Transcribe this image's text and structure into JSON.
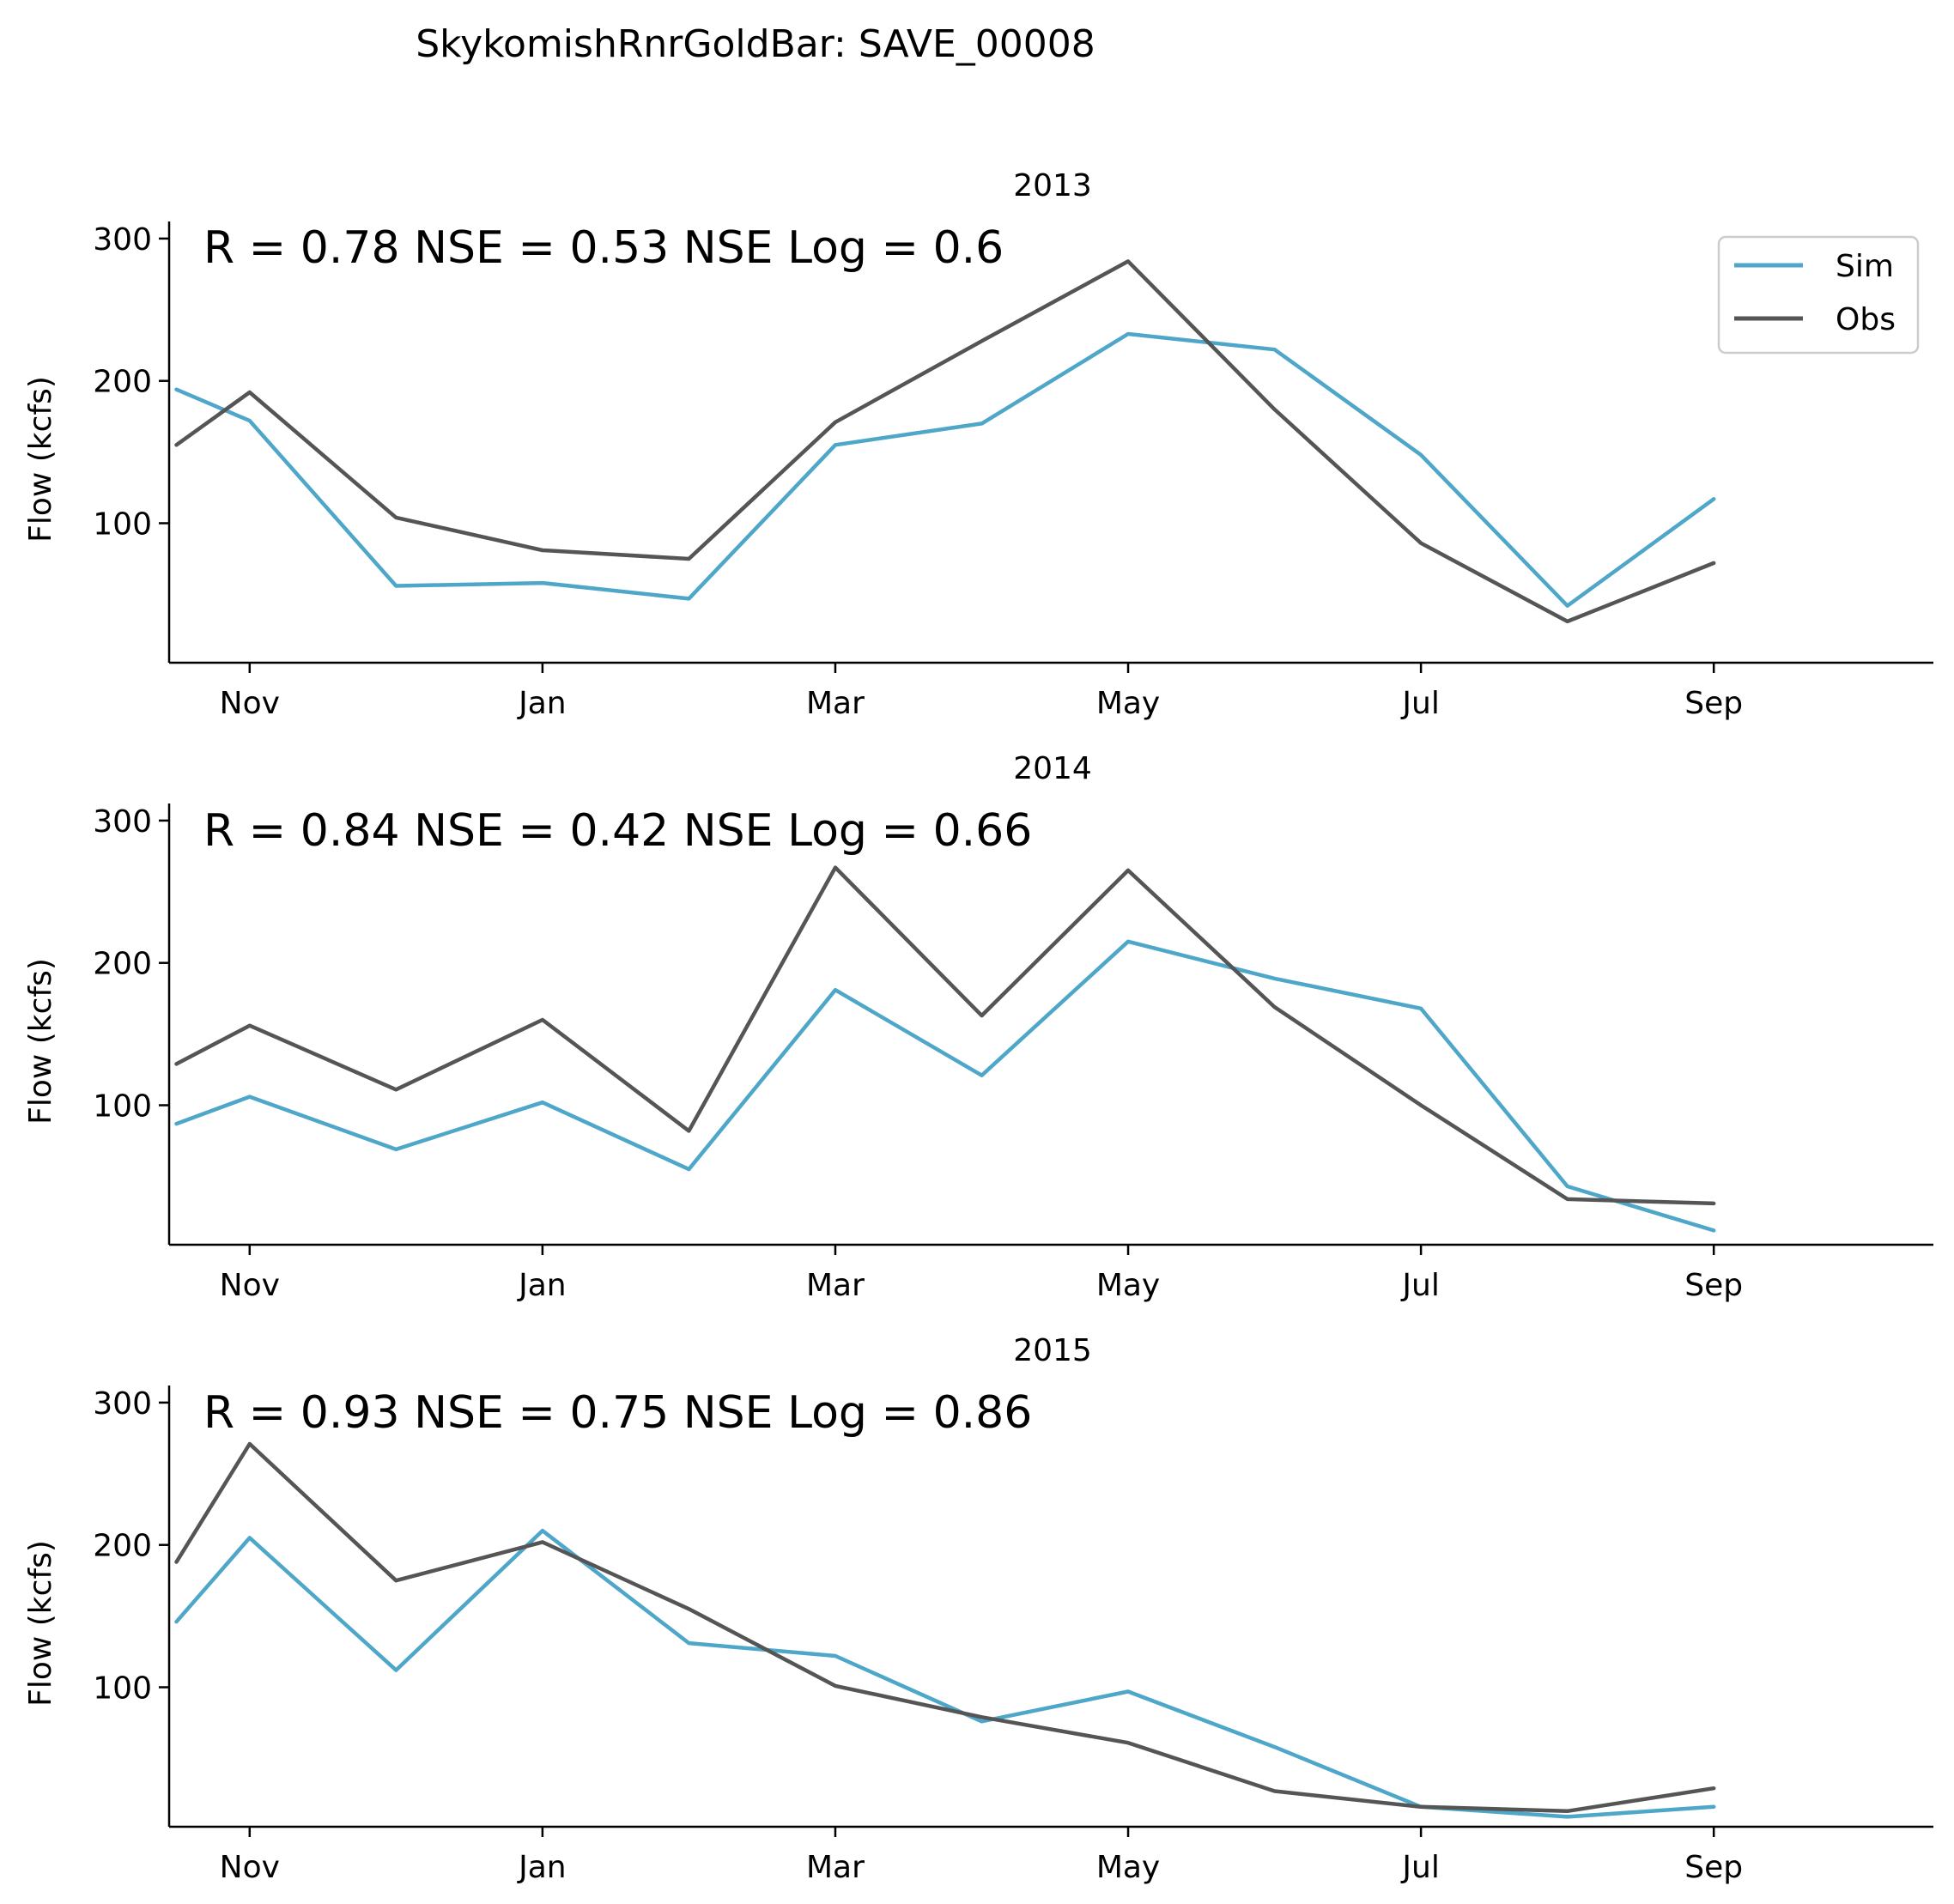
{
  "chart_data": {
    "type": "line",
    "title": "SkykomishRnrGoldBar: SAVE_00008",
    "ylabel": "Flow (kcfs)",
    "xlabel": "",
    "x": [
      9.5,
      10,
      11,
      12,
      13,
      14,
      15,
      16,
      17,
      18,
      19,
      20
    ],
    "x_ticks": [
      {
        "x": 10,
        "label": "Nov"
      },
      {
        "x": 12,
        "label": "Jan"
      },
      {
        "x": 14,
        "label": "Mar"
      },
      {
        "x": 16,
        "label": "May"
      },
      {
        "x": 18,
        "label": "Jul"
      },
      {
        "x": 20,
        "label": "Sep"
      }
    ],
    "xlim": [
      9.45,
      21.5
    ],
    "ylim": [
      2,
      312
    ],
    "y_ticks": [
      100,
      200,
      300
    ],
    "grid": false,
    "legend_position": "upper right",
    "colors": {
      "Sim": "#4ea7c9",
      "Obs": "#555555"
    },
    "legend": [
      {
        "name": "Sim"
      },
      {
        "name": "Obs"
      }
    ],
    "panels": [
      {
        "title": "2013",
        "stats": "R = 0.78  NSE = 0.53  NSE Log = 0.6",
        "series": [
          {
            "name": "Sim",
            "values": [
              194,
              172,
              56,
              58,
              47,
              155,
              170,
              233,
              222,
              148,
              42,
              117
            ]
          },
          {
            "name": "Obs",
            "values": [
              155,
              192,
              104,
              81,
              75,
              171,
              228,
              284,
              180,
              86,
              31,
              72
            ]
          }
        ]
      },
      {
        "title": "2014",
        "stats": "R = 0.84  NSE = 0.42  NSE Log = 0.66",
        "series": [
          {
            "name": "Sim",
            "values": [
              87,
              106,
              69,
              102,
              55,
              181,
              121,
              215,
              189,
              168,
              43,
              12
            ]
          },
          {
            "name": "Obs",
            "values": [
              129,
              156,
              111,
              160,
              82,
              267,
              163,
              265,
              169,
              100,
              34,
              31
            ]
          }
        ]
      },
      {
        "title": "2015",
        "stats": "R = 0.93  NSE = 0.75  NSE Log = 0.86",
        "series": [
          {
            "name": "Sim",
            "values": [
              146,
              205,
              112,
              210,
              131,
              122,
              76,
              97,
              58,
              16,
              9,
              16
            ]
          },
          {
            "name": "Obs",
            "values": [
              188,
              271,
              175,
              202,
              155,
              101,
              79,
              61,
              27,
              16,
              13,
              29
            ]
          }
        ]
      }
    ]
  }
}
